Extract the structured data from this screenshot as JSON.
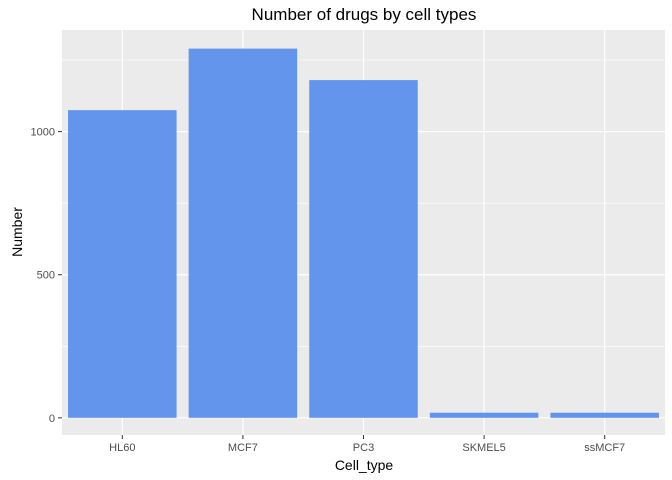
{
  "chart_data": {
    "type": "bar",
    "title": "Number of drugs by cell types",
    "xlabel": "Cell_type",
    "ylabel": "Number",
    "categories": [
      "HL60",
      "MCF7",
      "PC3",
      "SKMEL5",
      "ssMCF7"
    ],
    "values": [
      1075,
      1290,
      1180,
      18,
      18
    ],
    "ylim": [
      -60,
      1355
    ],
    "yticks": [
      0,
      500,
      1000
    ],
    "ytick_labels": [
      "0",
      "500",
      "1000"
    ],
    "grid": true,
    "legend": "none",
    "colors": {
      "bar": "#6495ED",
      "panel": "#EBEBEB",
      "grid": "#FFFFFF",
      "tick": "#333333"
    }
  }
}
